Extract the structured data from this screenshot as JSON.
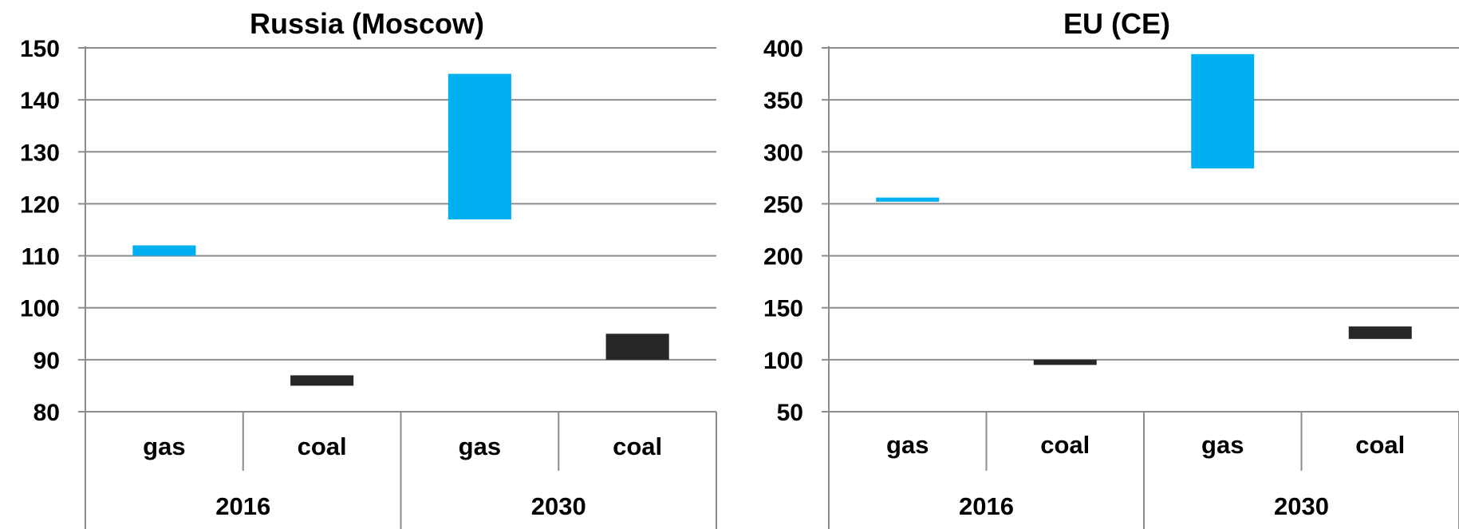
{
  "chart_data": [
    {
      "type": "bar",
      "subtype": "floating-range",
      "title": "Russia (Moscow)",
      "xlabel": "",
      "ylabel": "",
      "ylim": [
        80,
        150
      ],
      "yticks": [
        80,
        90,
        100,
        110,
        120,
        130,
        140,
        150
      ],
      "grid": true,
      "groups": [
        "2016",
        "2030"
      ],
      "categories": [
        "gas",
        "coal",
        "gas",
        "coal"
      ],
      "category_groups": [
        "2016",
        "2016",
        "2030",
        "2030"
      ],
      "ranges": [
        [
          110,
          112
        ],
        [
          85,
          87
        ],
        [
          117,
          145
        ],
        [
          90,
          95
        ]
      ],
      "colors": [
        "#00b0f0",
        "#262626",
        "#00b0f0",
        "#262626"
      ]
    },
    {
      "type": "bar",
      "subtype": "floating-range",
      "title": "EU (CE)",
      "xlabel": "",
      "ylabel": "",
      "ylim": [
        50,
        400
      ],
      "yticks": [
        50,
        100,
        150,
        200,
        250,
        300,
        350,
        400
      ],
      "grid": true,
      "groups": [
        "2016",
        "2030"
      ],
      "categories": [
        "gas",
        "coal",
        "gas",
        "coal"
      ],
      "category_groups": [
        "2016",
        "2016",
        "2030",
        "2030"
      ],
      "ranges": [
        [
          252,
          256
        ],
        [
          95,
          100
        ],
        [
          284,
          394
        ],
        [
          120,
          132
        ]
      ],
      "colors": [
        "#00b0f0",
        "#262626",
        "#00b0f0",
        "#262626"
      ]
    }
  ]
}
